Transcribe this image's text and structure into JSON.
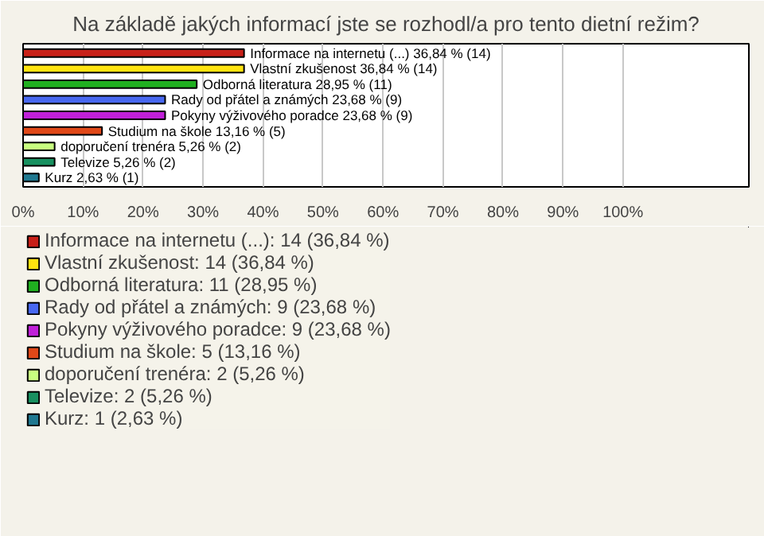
{
  "chart_data": {
    "type": "bar",
    "orientation": "horizontal",
    "title": "Na základě jakých informací jste se rozhodl/a pro tento dietní režim?",
    "categories": [
      null,
      null,
      null,
      null,
      null,
      null,
      null,
      null,
      null
    ],
    "xlim": [
      0,
      121
    ],
    "xticks": [
      {
        "value": 0,
        "label": "0%"
      },
      {
        "value": 10,
        "label": "10%"
      },
      {
        "value": 20,
        "label": "20%"
      },
      {
        "value": 30,
        "label": "30%"
      },
      {
        "value": 40,
        "label": "40%"
      },
      {
        "value": 50,
        "label": "50%"
      },
      {
        "value": 60,
        "label": "60%"
      },
      {
        "value": 70,
        "label": "70%"
      },
      {
        "value": 80,
        "label": "80%"
      },
      {
        "value": 90,
        "label": "90%"
      },
      {
        "value": 100,
        "label": "100%"
      }
    ],
    "grid": "x",
    "legend": "bottom",
    "series": [
      {
        "name": "Informace na internetu (...): 14 (36,84 %)",
        "color": "#c82018",
        "values": [
          36.84,
          null,
          null,
          null,
          null,
          null,
          null,
          null,
          null
        ],
        "value_labels": [
          "Informace na internetu (...) 36,84 % (14)",
          null,
          null,
          null,
          null,
          null,
          null,
          null,
          null
        ]
      },
      {
        "name": "Vlastní zkušenost: 14 (36,84 %)",
        "color": "#ffe410",
        "values": [
          null,
          36.84,
          null,
          null,
          null,
          null,
          null,
          null,
          null
        ],
        "value_labels": [
          null,
          "Vlastní zkušenost 36,84 % (14)",
          null,
          null,
          null,
          null,
          null,
          null,
          null
        ]
      },
      {
        "name": "Odborná literatura: 11 (28,95 %)",
        "color": "#20b020",
        "values": [
          null,
          null,
          28.95,
          null,
          null,
          null,
          null,
          null,
          null
        ],
        "value_labels": [
          null,
          null,
          "Odborná literatura 28,95 % (11)",
          null,
          null,
          null,
          null,
          null,
          null
        ]
      },
      {
        "name": "Rady od přátel a známých: 9 (23,68 %)",
        "color": "#4868f0",
        "values": [
          null,
          null,
          null,
          23.68,
          null,
          null,
          null,
          null,
          null
        ],
        "value_labels": [
          null,
          null,
          null,
          "Rady od přátel a známých 23,68 % (9)",
          null,
          null,
          null,
          null,
          null
        ]
      },
      {
        "name": "Pokyny výživového poradce: 9 (23,68 %)",
        "color": "#c020d8",
        "values": [
          null,
          null,
          null,
          null,
          23.68,
          null,
          null,
          null,
          null
        ],
        "value_labels": [
          null,
          null,
          null,
          null,
          "Pokyny výživového poradce 23,68 % (9)",
          null,
          null,
          null,
          null
        ]
      },
      {
        "name": "Studium na škole: 5 (13,16 %)",
        "color": "#e04818",
        "values": [
          null,
          null,
          null,
          null,
          null,
          13.16,
          null,
          null,
          null
        ],
        "value_labels": [
          null,
          null,
          null,
          null,
          null,
          "Studium na škole 13,16 % (5)",
          null,
          null,
          null
        ]
      },
      {
        "name": "doporučení trenéra: 2 (5,26 %)",
        "color": "#c8ff80",
        "values": [
          null,
          null,
          null,
          null,
          null,
          null,
          5.26,
          null,
          null
        ],
        "value_labels": [
          null,
          null,
          null,
          null,
          null,
          null,
          "doporučení trenéra 5,26 % (2)",
          null,
          null
        ]
      },
      {
        "name": "Televize: 2 (5,26 %)",
        "color": "#189060",
        "values": [
          null,
          null,
          null,
          null,
          null,
          null,
          null,
          5.26,
          null
        ],
        "value_labels": [
          null,
          null,
          null,
          null,
          null,
          null,
          null,
          "Televize 5,26 % (2)",
          null
        ]
      },
      {
        "name": "Kurz: 1 (2,63 %)",
        "color": "#207890",
        "values": [
          null,
          null,
          null,
          null,
          null,
          null,
          null,
          null,
          2.63
        ],
        "value_labels": [
          null,
          null,
          null,
          null,
          null,
          null,
          null,
          null,
          "Kurz 2,63 % (1)"
        ]
      }
    ]
  }
}
